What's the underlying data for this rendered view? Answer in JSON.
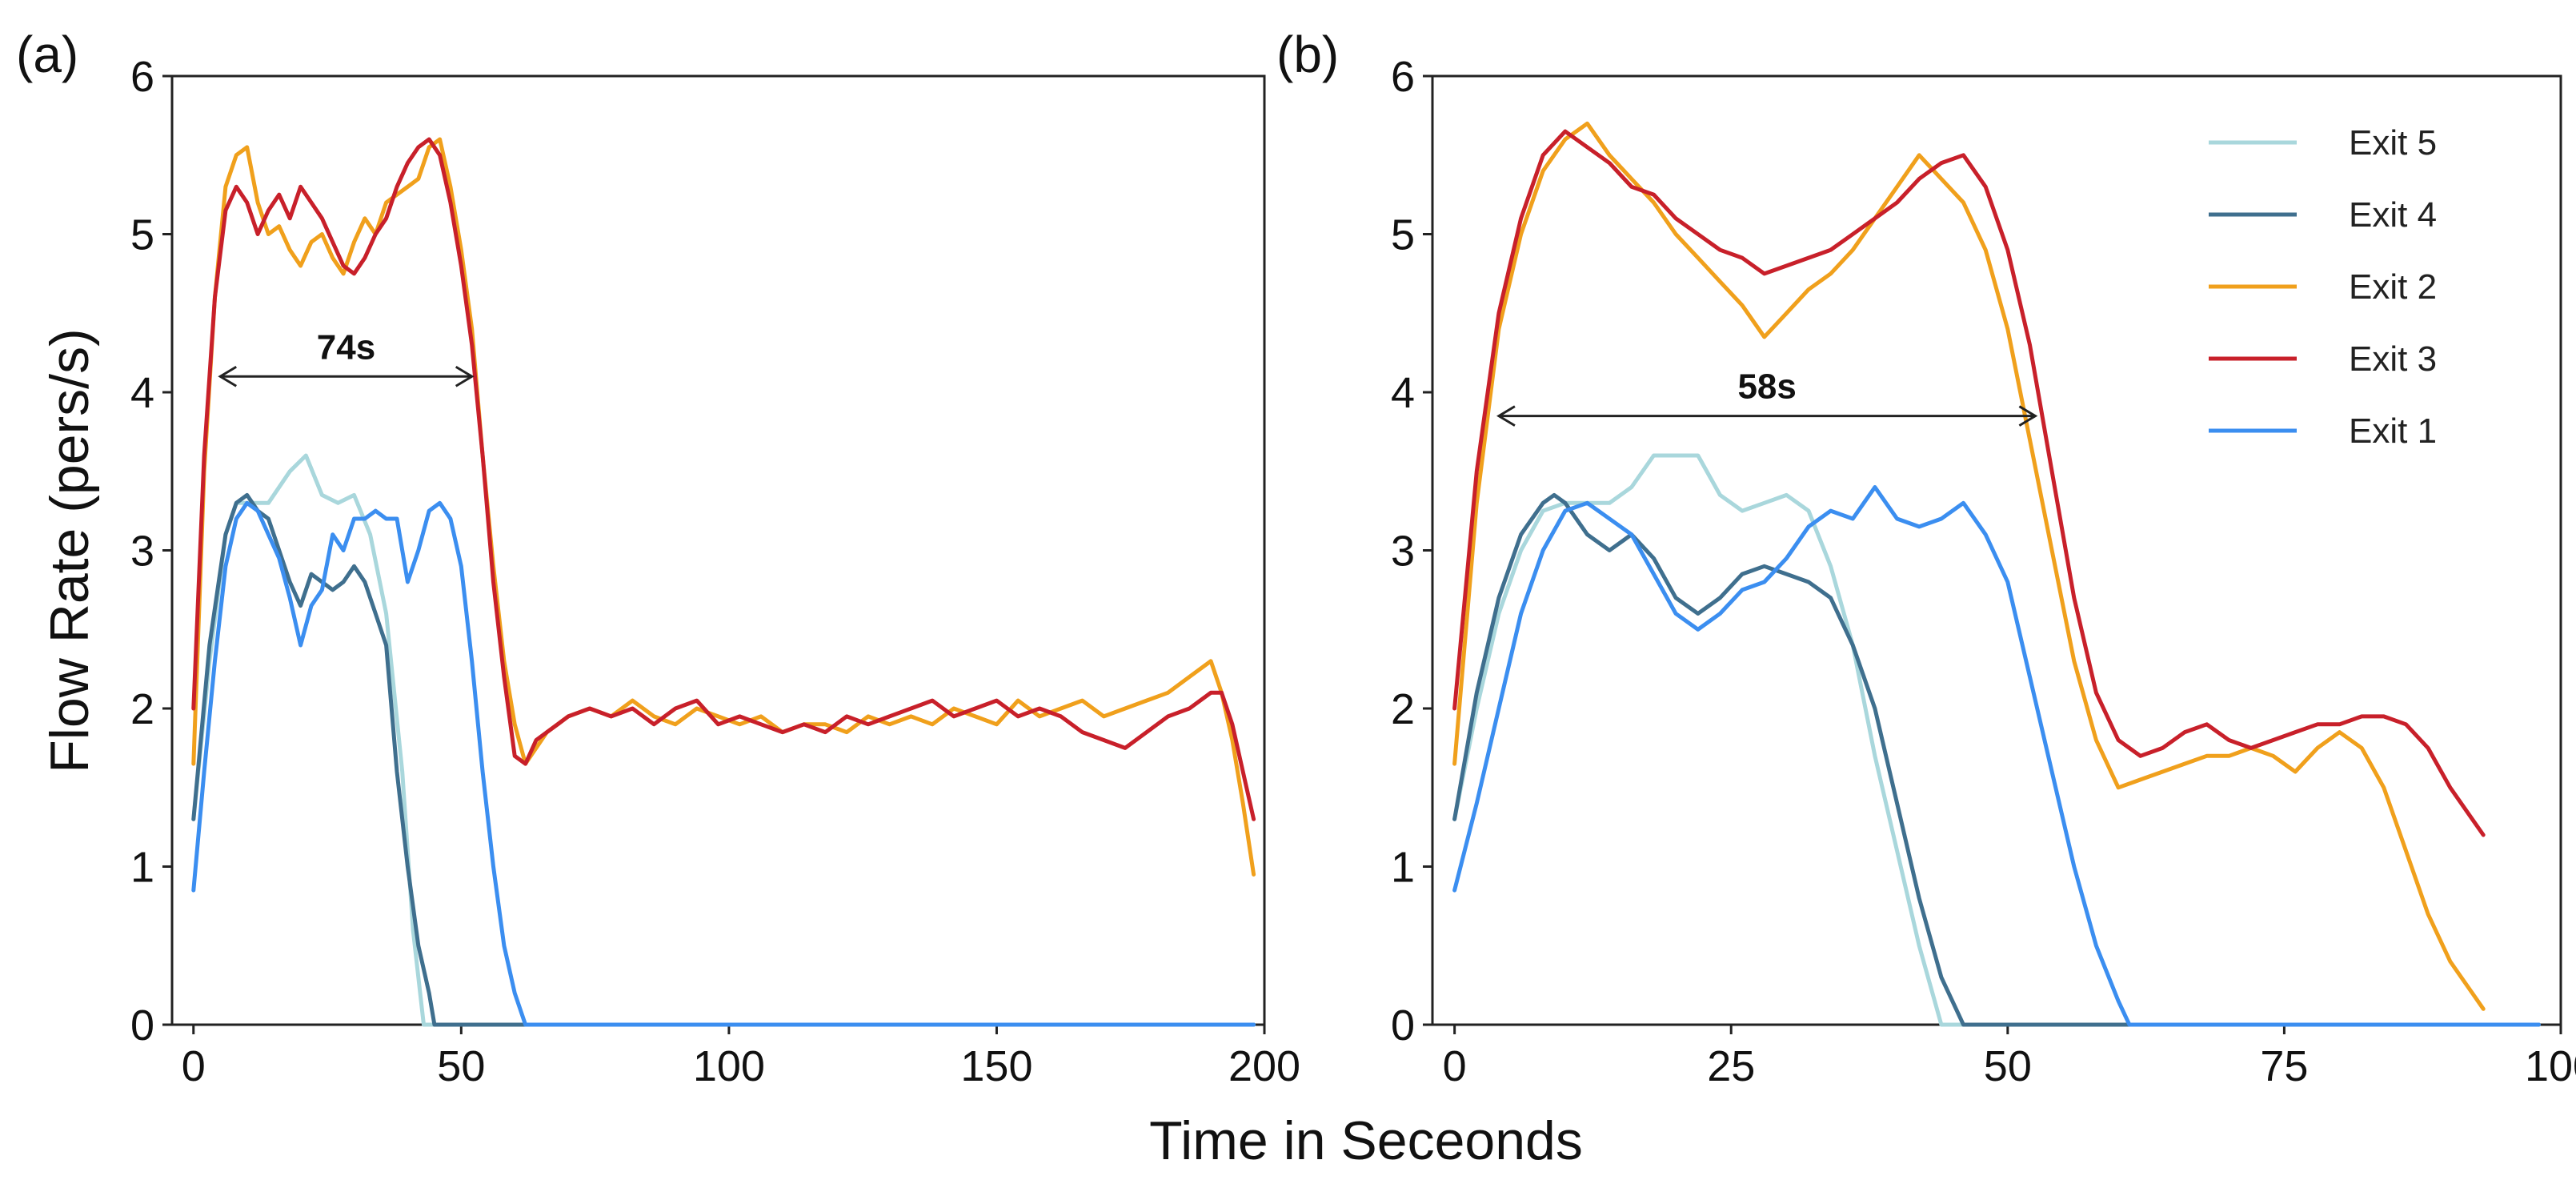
{
  "x_axis_title": "Time in Seceonds",
  "y_axis_title": "Flow Rate (pers/s)",
  "series_colors": {
    "Exit 5": "#a9d7dc",
    "Exit 4": "#3f6f8e",
    "Exit 2": "#f0a01c",
    "Exit 3": "#c8202a",
    "Exit 1": "#3b8ef0"
  },
  "chart_data": [
    {
      "type": "line",
      "panel_label": "(a)",
      "title": "",
      "xlabel": "Time in Seceonds",
      "ylabel": "Flow Rate (pers/s)",
      "xlim": [
        -4,
        200
      ],
      "ylim": [
        0,
        6
      ],
      "xticks": [
        0,
        50,
        100,
        150,
        200
      ],
      "yticks": [
        0,
        1,
        2,
        3,
        4,
        5,
        6
      ],
      "annotation": {
        "text": "74s",
        "y": 4.1,
        "x_start": 5,
        "x_end": 52
      },
      "series": [
        {
          "name": "Exit 5",
          "x": [
            0,
            3,
            6,
            8,
            10,
            14,
            18,
            21,
            24,
            27,
            30,
            33,
            36,
            39,
            41,
            43
          ],
          "y": [
            1.3,
            2.3,
            3.1,
            3.3,
            3.3,
            3.3,
            3.5,
            3.6,
            3.35,
            3.3,
            3.35,
            3.1,
            2.6,
            1.6,
            0.6,
            0.0
          ]
        },
        {
          "name": "Exit 4",
          "x": [
            0,
            3,
            6,
            8,
            10,
            12,
            14,
            16,
            18,
            20,
            22,
            24,
            26,
            28,
            30,
            32,
            34,
            36,
            38,
            40,
            42,
            44,
            45
          ],
          "y": [
            1.3,
            2.4,
            3.1,
            3.3,
            3.35,
            3.25,
            3.2,
            3.0,
            2.8,
            2.65,
            2.85,
            2.8,
            2.75,
            2.8,
            2.9,
            2.8,
            2.6,
            2.4,
            1.6,
            1.0,
            0.5,
            0.2,
            0.0
          ]
        },
        {
          "name": "Exit 1",
          "x": [
            0,
            2,
            4,
            6,
            8,
            10,
            12,
            14,
            16,
            18,
            20,
            22,
            24,
            26,
            28,
            30,
            32,
            34,
            36,
            38,
            40,
            42,
            44,
            46,
            48,
            50,
            52,
            54,
            56,
            58,
            60,
            62
          ],
          "y": [
            0.85,
            1.6,
            2.3,
            2.9,
            3.2,
            3.3,
            3.25,
            3.1,
            2.95,
            2.7,
            2.4,
            2.65,
            2.75,
            3.1,
            3.0,
            3.2,
            3.2,
            3.25,
            3.2,
            3.2,
            2.8,
            3.0,
            3.25,
            3.3,
            3.2,
            2.9,
            2.3,
            1.6,
            1.0,
            0.5,
            0.2,
            0.0
          ]
        },
        {
          "name": "Exit 2",
          "x": [
            0,
            2,
            4,
            6,
            8,
            10,
            12,
            14,
            16,
            18,
            20,
            22,
            24,
            26,
            28,
            30,
            32,
            34,
            36,
            38,
            40,
            42,
            44,
            46,
            48,
            50,
            52,
            54,
            56,
            58,
            60,
            62,
            64,
            66,
            68,
            70,
            74,
            78,
            82,
            86,
            90,
            94,
            98,
            102,
            106,
            110,
            114,
            118,
            122,
            126,
            130,
            134,
            138,
            142,
            146,
            150,
            154,
            158,
            162,
            166,
            170,
            174,
            178,
            182,
            186,
            190,
            192,
            194,
            196,
            198
          ],
          "y": [
            1.65,
            3.5,
            4.6,
            5.3,
            5.5,
            5.55,
            5.2,
            5.0,
            5.05,
            4.9,
            4.8,
            4.95,
            5.0,
            4.85,
            4.75,
            4.95,
            5.1,
            5.0,
            5.2,
            5.25,
            5.3,
            5.35,
            5.55,
            5.6,
            5.3,
            4.9,
            4.4,
            3.6,
            2.9,
            2.3,
            1.9,
            1.65,
            1.75,
            1.85,
            1.9,
            1.95,
            2.0,
            1.95,
            2.05,
            1.95,
            1.9,
            2.0,
            1.95,
            1.9,
            1.95,
            1.85,
            1.9,
            1.9,
            1.85,
            1.95,
            1.9,
            1.95,
            1.9,
            2.0,
            1.95,
            1.9,
            2.05,
            1.95,
            2.0,
            2.05,
            1.95,
            2.0,
            2.05,
            2.1,
            2.2,
            2.3,
            2.1,
            1.8,
            1.4,
            0.95
          ]
        },
        {
          "name": "Exit 3",
          "x": [
            0,
            2,
            4,
            6,
            8,
            10,
            12,
            14,
            16,
            18,
            20,
            22,
            24,
            26,
            28,
            30,
            32,
            34,
            36,
            38,
            40,
            42,
            44,
            46,
            48,
            50,
            52,
            54,
            56,
            58,
            60,
            62,
            64,
            66,
            68,
            70,
            74,
            78,
            82,
            86,
            90,
            94,
            98,
            102,
            106,
            110,
            114,
            118,
            122,
            126,
            130,
            134,
            138,
            142,
            146,
            150,
            154,
            158,
            162,
            166,
            170,
            174,
            178,
            182,
            186,
            190,
            192,
            194,
            196,
            198
          ],
          "y": [
            2.0,
            3.6,
            4.6,
            5.15,
            5.3,
            5.2,
            5.0,
            5.15,
            5.25,
            5.1,
            5.3,
            5.2,
            5.1,
            4.95,
            4.8,
            4.75,
            4.85,
            5.0,
            5.1,
            5.3,
            5.45,
            5.55,
            5.6,
            5.5,
            5.2,
            4.8,
            4.3,
            3.6,
            2.8,
            2.2,
            1.7,
            1.65,
            1.8,
            1.85,
            1.9,
            1.95,
            2.0,
            1.95,
            2.0,
            1.9,
            2.0,
            2.05,
            1.9,
            1.95,
            1.9,
            1.85,
            1.9,
            1.85,
            1.95,
            1.9,
            1.95,
            2.0,
            2.05,
            1.95,
            2.0,
            2.05,
            1.95,
            2.0,
            1.95,
            1.85,
            1.8,
            1.75,
            1.85,
            1.95,
            2.0,
            2.1,
            2.1,
            1.9,
            1.6,
            1.3
          ]
        }
      ]
    },
    {
      "type": "line",
      "panel_label": "(b)",
      "title": "",
      "xlabel": "Time in Seceonds",
      "ylabel": "Flow Rate (pers/s)",
      "xlim": [
        -2,
        100
      ],
      "ylim": [
        0,
        6
      ],
      "xticks": [
        0,
        25,
        50,
        75,
        100
      ],
      "yticks": [
        0,
        1,
        2,
        3,
        4,
        5,
        6
      ],
      "annotation": {
        "text": "58s",
        "y": 3.85,
        "x_start": 4,
        "x_end": 52.5
      },
      "legend": {
        "position": "top-right",
        "entries": [
          "Exit 5",
          "Exit 4",
          "Exit 2",
          "Exit 3",
          "Exit 1"
        ]
      },
      "series": [
        {
          "name": "Exit 5",
          "x": [
            0,
            2,
            4,
            6,
            8,
            10,
            12,
            14,
            16,
            18,
            20,
            22,
            24,
            26,
            28,
            30,
            32,
            34,
            36,
            38,
            40,
            42,
            44
          ],
          "y": [
            1.3,
            2.0,
            2.6,
            3.0,
            3.25,
            3.3,
            3.3,
            3.3,
            3.4,
            3.6,
            3.6,
            3.6,
            3.35,
            3.25,
            3.3,
            3.35,
            3.25,
            2.9,
            2.4,
            1.7,
            1.1,
            0.5,
            0.0
          ]
        },
        {
          "name": "Exit 4",
          "x": [
            0,
            2,
            4,
            6,
            8,
            9,
            10,
            12,
            14,
            16,
            18,
            20,
            22,
            24,
            26,
            28,
            30,
            32,
            34,
            36,
            38,
            40,
            42,
            44,
            46
          ],
          "y": [
            1.3,
            2.1,
            2.7,
            3.1,
            3.3,
            3.35,
            3.3,
            3.1,
            3.0,
            3.1,
            2.95,
            2.7,
            2.6,
            2.7,
            2.85,
            2.9,
            2.85,
            2.8,
            2.7,
            2.4,
            2.0,
            1.4,
            0.8,
            0.3,
            0.0
          ]
        },
        {
          "name": "Exit 1",
          "x": [
            0,
            2,
            4,
            6,
            8,
            10,
            12,
            14,
            16,
            18,
            20,
            22,
            24,
            26,
            28,
            30,
            32,
            34,
            36,
            38,
            40,
            42,
            44,
            46,
            48,
            50,
            52,
            54,
            56,
            58,
            60,
            61
          ],
          "y": [
            0.85,
            1.4,
            2.0,
            2.6,
            3.0,
            3.25,
            3.3,
            3.2,
            3.1,
            2.85,
            2.6,
            2.5,
            2.6,
            2.75,
            2.8,
            2.95,
            3.15,
            3.25,
            3.2,
            3.4,
            3.2,
            3.15,
            3.2,
            3.3,
            3.1,
            2.8,
            2.2,
            1.6,
            1.0,
            0.5,
            0.15,
            0.0
          ]
        },
        {
          "name": "Exit 2",
          "x": [
            0,
            2,
            4,
            6,
            8,
            10,
            12,
            14,
            16,
            18,
            20,
            22,
            24,
            26,
            28,
            30,
            32,
            34,
            36,
            38,
            40,
            42,
            44,
            46,
            48,
            50,
            52,
            54,
            56,
            58,
            60,
            62,
            64,
            66,
            68,
            70,
            72,
            74,
            76,
            78,
            80,
            82,
            84,
            86,
            88,
            90,
            92,
            93
          ],
          "y": [
            1.65,
            3.3,
            4.4,
            5.0,
            5.4,
            5.6,
            5.7,
            5.5,
            5.35,
            5.2,
            5.0,
            4.85,
            4.7,
            4.55,
            4.35,
            4.5,
            4.65,
            4.75,
            4.9,
            5.1,
            5.3,
            5.5,
            5.35,
            5.2,
            4.9,
            4.4,
            3.7,
            3.0,
            2.3,
            1.8,
            1.5,
            1.55,
            1.6,
            1.65,
            1.7,
            1.7,
            1.75,
            1.7,
            1.6,
            1.75,
            1.85,
            1.75,
            1.5,
            1.1,
            0.7,
            0.4,
            0.2,
            0.1
          ]
        },
        {
          "name": "Exit 3",
          "x": [
            0,
            2,
            4,
            6,
            8,
            10,
            12,
            14,
            16,
            18,
            20,
            22,
            24,
            26,
            28,
            30,
            32,
            34,
            36,
            38,
            40,
            42,
            44,
            46,
            48,
            50,
            52,
            54,
            56,
            58,
            60,
            62,
            64,
            66,
            68,
            70,
            72,
            74,
            76,
            78,
            80,
            82,
            84,
            86,
            88,
            90,
            92,
            93
          ],
          "y": [
            2.0,
            3.5,
            4.5,
            5.1,
            5.5,
            5.65,
            5.55,
            5.45,
            5.3,
            5.25,
            5.1,
            5.0,
            4.9,
            4.85,
            4.75,
            4.8,
            4.85,
            4.9,
            5.0,
            5.1,
            5.2,
            5.35,
            5.45,
            5.5,
            5.3,
            4.9,
            4.3,
            3.5,
            2.7,
            2.1,
            1.8,
            1.7,
            1.75,
            1.85,
            1.9,
            1.8,
            1.75,
            1.8,
            1.85,
            1.9,
            1.9,
            1.95,
            1.95,
            1.9,
            1.75,
            1.5,
            1.3,
            1.2
          ]
        }
      ]
    }
  ]
}
